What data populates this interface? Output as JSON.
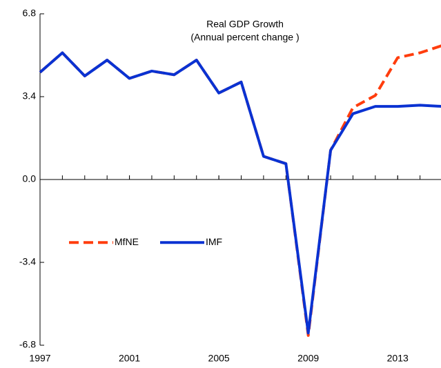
{
  "chart_data": {
    "type": "line",
    "title": "Real GDP Growth",
    "subtitle": "(Annual percent change )",
    "x": [
      1997,
      1998,
      1999,
      2000,
      2001,
      2002,
      2003,
      2004,
      2005,
      2006,
      2007,
      2008,
      2009,
      2010,
      2011,
      2012,
      2013,
      2014,
      2015
    ],
    "series": [
      {
        "name": "MfNE",
        "color": "#ff3d0d",
        "dash": true,
        "values": [
          4.4,
          5.2,
          4.25,
          4.9,
          4.15,
          4.45,
          4.3,
          4.9,
          3.55,
          4.0,
          0.95,
          0.65,
          -6.4,
          1.2,
          2.95,
          3.45,
          5.0,
          5.2,
          5.5
        ]
      },
      {
        "name": "IMF",
        "color": "#0a32d2",
        "dash": false,
        "values": [
          4.4,
          5.2,
          4.25,
          4.9,
          4.15,
          4.45,
          4.3,
          4.9,
          3.55,
          4.0,
          0.95,
          0.65,
          -6.3,
          1.2,
          2.7,
          3.0,
          3.0,
          3.05,
          3.0
        ]
      }
    ],
    "xlim": [
      1997,
      2015
    ],
    "xticks": [
      1997,
      2001,
      2005,
      2009,
      2013
    ],
    "ylim": [
      -6.8,
      6.8
    ],
    "yticks": [
      6.8,
      3.4,
      {
        "value": 0,
        "label": "0.0"
      },
      -3.4,
      -6.8
    ],
    "legend": "left"
  }
}
